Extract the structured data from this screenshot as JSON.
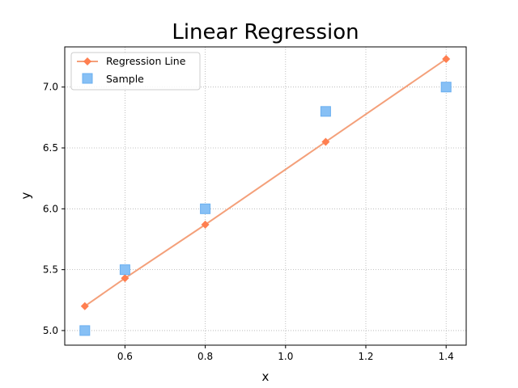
{
  "chart_data": {
    "type": "line",
    "title": "Linear Regression",
    "xlabel": "x",
    "ylabel": "y",
    "xlim": [
      0.45,
      1.45
    ],
    "ylim": [
      4.88,
      7.33
    ],
    "xticks": [
      0.6,
      0.8,
      1.0,
      1.2,
      1.4
    ],
    "xtick_labels": [
      "0.6",
      "0.8",
      "1.0",
      "1.2",
      "1.4"
    ],
    "yticks": [
      5.0,
      5.5,
      6.0,
      6.5,
      7.0
    ],
    "ytick_labels": [
      "5.0",
      "5.5",
      "6.0",
      "6.5",
      "7.0"
    ],
    "grid": true,
    "legend_position": "top-left",
    "series": [
      {
        "name": "Regression Line",
        "kind": "line",
        "marker": "diamond",
        "color": "#ff7f50",
        "line_color": "#f4a07a",
        "x": [
          0.5,
          0.6,
          0.8,
          1.1,
          1.4
        ],
        "y": [
          5.2,
          5.43,
          5.87,
          6.55,
          7.23
        ]
      },
      {
        "name": "Sample",
        "kind": "scatter",
        "marker": "square",
        "color": "#87c0f5",
        "x": [
          0.5,
          0.6,
          0.8,
          1.1,
          1.4
        ],
        "y": [
          5.0,
          5.5,
          6.0,
          6.8,
          7.0
        ]
      }
    ]
  }
}
